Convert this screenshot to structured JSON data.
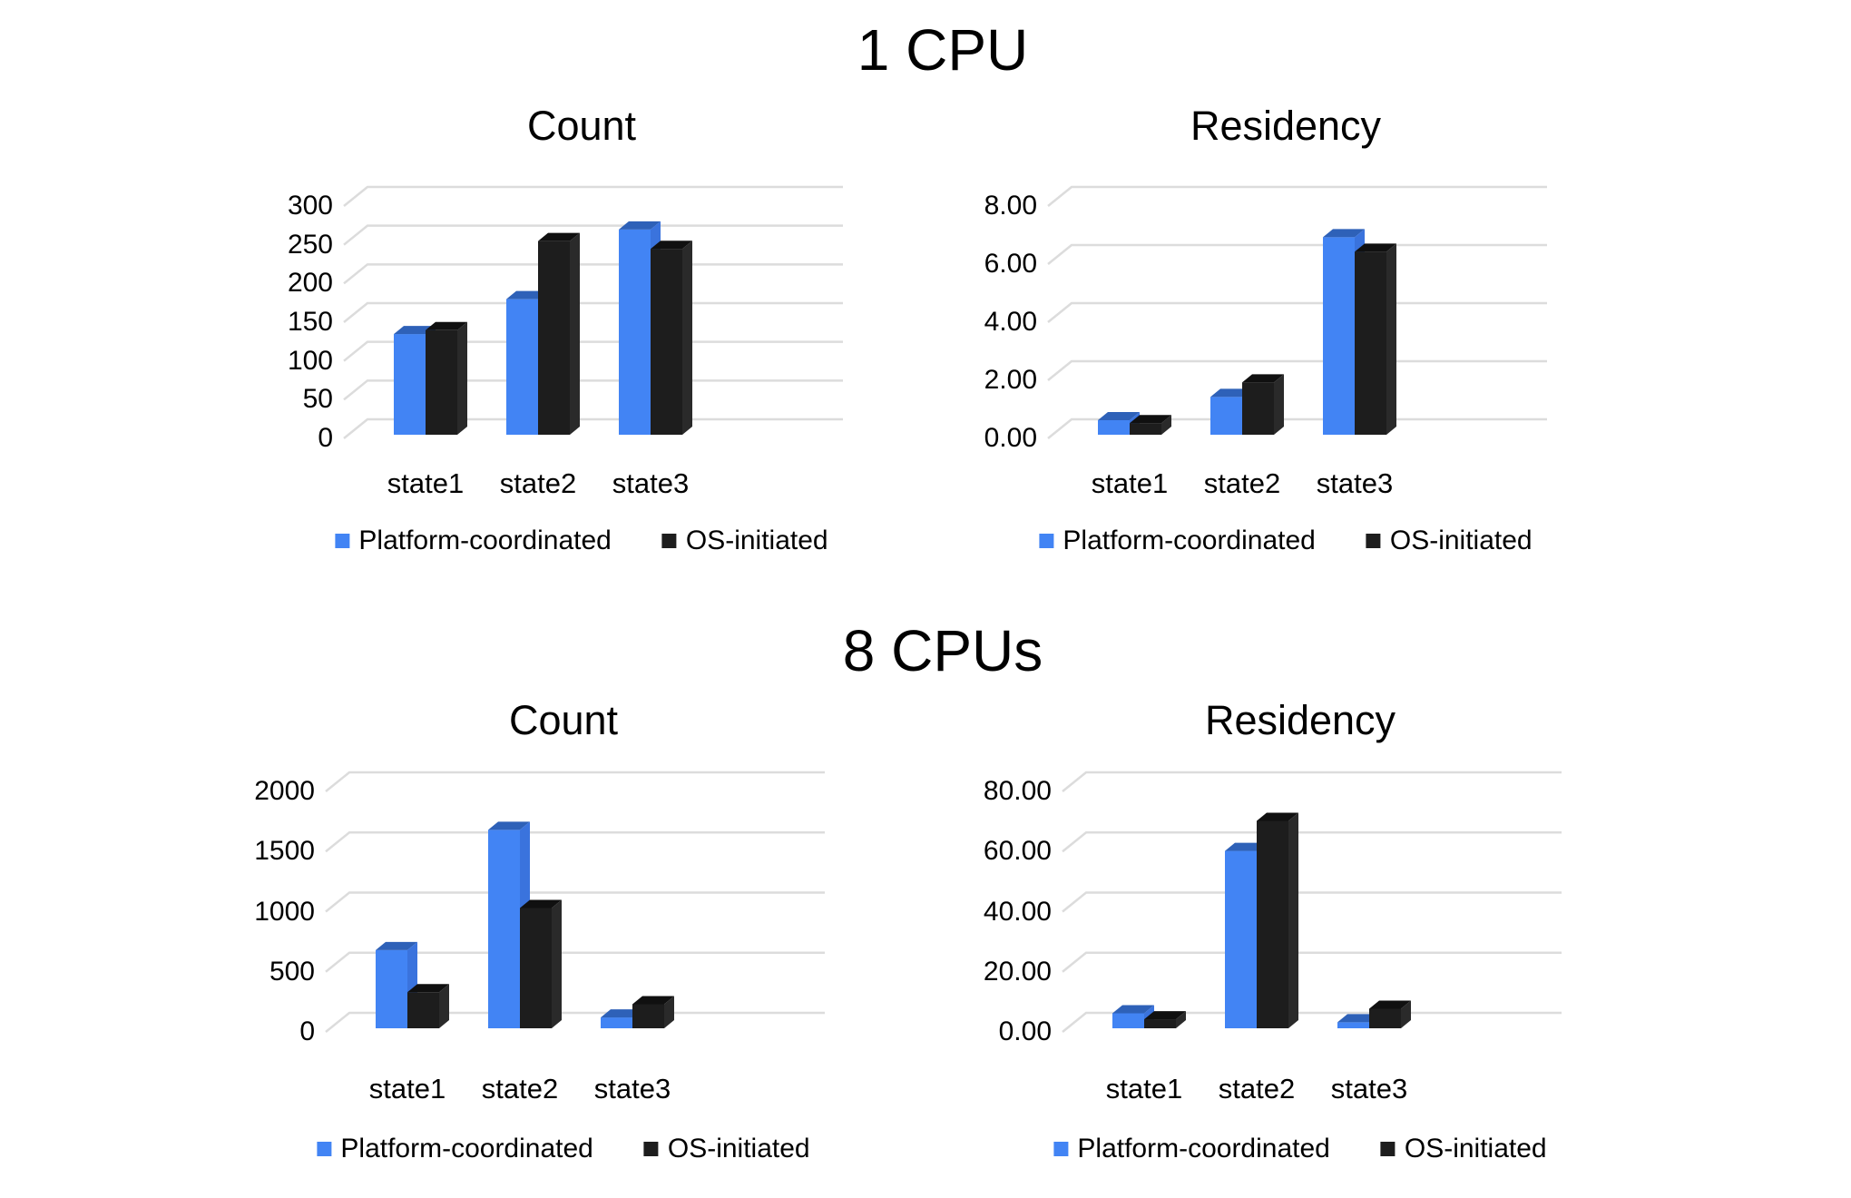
{
  "titles": {
    "section1": "1 CPU",
    "section2": "8 CPUs"
  },
  "legend": {
    "items": [
      {
        "label": "Platform-coordinated",
        "color": "#4284f4"
      },
      {
        "label": "OS-initiated",
        "color": "#1d1d1d"
      }
    ]
  },
  "colors": {
    "platform_front": "#4284f4",
    "platform_top": "#2e61b8",
    "platform_side": "#3a73dd",
    "os_front": "#1d1d1d",
    "os_top": "#101010",
    "os_side": "#2a2a2a",
    "gridline": "#dcdcdc",
    "text": "#000000",
    "background": "#ffffff"
  },
  "chart_data": [
    {
      "type": "bar",
      "section": "1 CPU",
      "title": "Count",
      "categories": [
        "state1",
        "state2",
        "state3"
      ],
      "series": [
        {
          "name": "Platform-coordinated",
          "values": [
            130,
            175,
            265
          ]
        },
        {
          "name": "OS-initiated",
          "values": [
            135,
            250,
            240
          ]
        }
      ],
      "ylim": [
        0,
        300
      ],
      "ytick_step": 50,
      "ytick_labels": [
        "0",
        "50",
        "100",
        "150",
        "200",
        "250",
        "300"
      ],
      "grid": true,
      "legend_position": "bottom"
    },
    {
      "type": "bar",
      "section": "1 CPU",
      "title": "Residency",
      "categories": [
        "state1",
        "state2",
        "state3"
      ],
      "series": [
        {
          "name": "Platform-coordinated",
          "values": [
            0.5,
            1.3,
            6.8
          ]
        },
        {
          "name": "OS-initiated",
          "values": [
            0.4,
            1.8,
            6.3
          ]
        }
      ],
      "ylim": [
        0,
        8
      ],
      "ytick_step": 2,
      "ytick_labels": [
        "0.00",
        "2.00",
        "4.00",
        "6.00",
        "8.00"
      ],
      "grid": true,
      "legend_position": "bottom"
    },
    {
      "type": "bar",
      "section": "8 CPUs",
      "title": "Count",
      "categories": [
        "state1",
        "state2",
        "state3"
      ],
      "series": [
        {
          "name": "Platform-coordinated",
          "values": [
            650,
            1650,
            90
          ]
        },
        {
          "name": "OS-initiated",
          "values": [
            300,
            1000,
            200
          ]
        }
      ],
      "ylim": [
        0,
        2000
      ],
      "ytick_step": 500,
      "ytick_labels": [
        "0",
        "500",
        "1000",
        "1500",
        "2000"
      ],
      "grid": true,
      "legend_position": "bottom"
    },
    {
      "type": "bar",
      "section": "8 CPUs",
      "title": "Residency",
      "categories": [
        "state1",
        "state2",
        "state3"
      ],
      "series": [
        {
          "name": "Platform-coordinated",
          "values": [
            5,
            59,
            2
          ]
        },
        {
          "name": "OS-initiated",
          "values": [
            3,
            69,
            6.5
          ]
        }
      ],
      "ylim": [
        0,
        80
      ],
      "ytick_step": 20,
      "ytick_labels": [
        "0.00",
        "20.00",
        "40.00",
        "60.00",
        "80.00"
      ],
      "grid": true,
      "legend_position": "bottom"
    }
  ]
}
